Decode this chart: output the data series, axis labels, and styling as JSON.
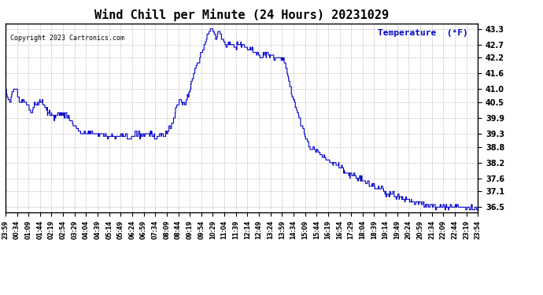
{
  "title": "Wind Chill per Minute (24 Hours) 20231029",
  "ylabel": "Temperature  (°F)",
  "copyright": "Copyright 2023 Cartronics.com",
  "line_color": "#0000CC",
  "bg_color": "#ffffff",
  "grid_color": "#aaaaaa",
  "ylim": [
    36.3,
    43.5
  ],
  "yticks": [
    43.3,
    42.7,
    42.2,
    41.6,
    41.0,
    40.5,
    39.9,
    39.3,
    38.8,
    38.2,
    37.6,
    37.1,
    36.5
  ],
  "xtick_labels": [
    "23:59",
    "00:34",
    "01:09",
    "01:44",
    "02:19",
    "02:54",
    "03:29",
    "04:04",
    "04:39",
    "05:14",
    "05:49",
    "06:24",
    "06:59",
    "07:34",
    "08:09",
    "08:44",
    "09:19",
    "09:54",
    "10:29",
    "11:04",
    "11:39",
    "12:14",
    "12:49",
    "13:24",
    "13:59",
    "14:34",
    "15:09",
    "15:44",
    "16:19",
    "16:54",
    "17:29",
    "18:04",
    "18:39",
    "19:14",
    "19:49",
    "20:24",
    "20:59",
    "21:34",
    "22:09",
    "22:44",
    "23:19",
    "23:54"
  ]
}
